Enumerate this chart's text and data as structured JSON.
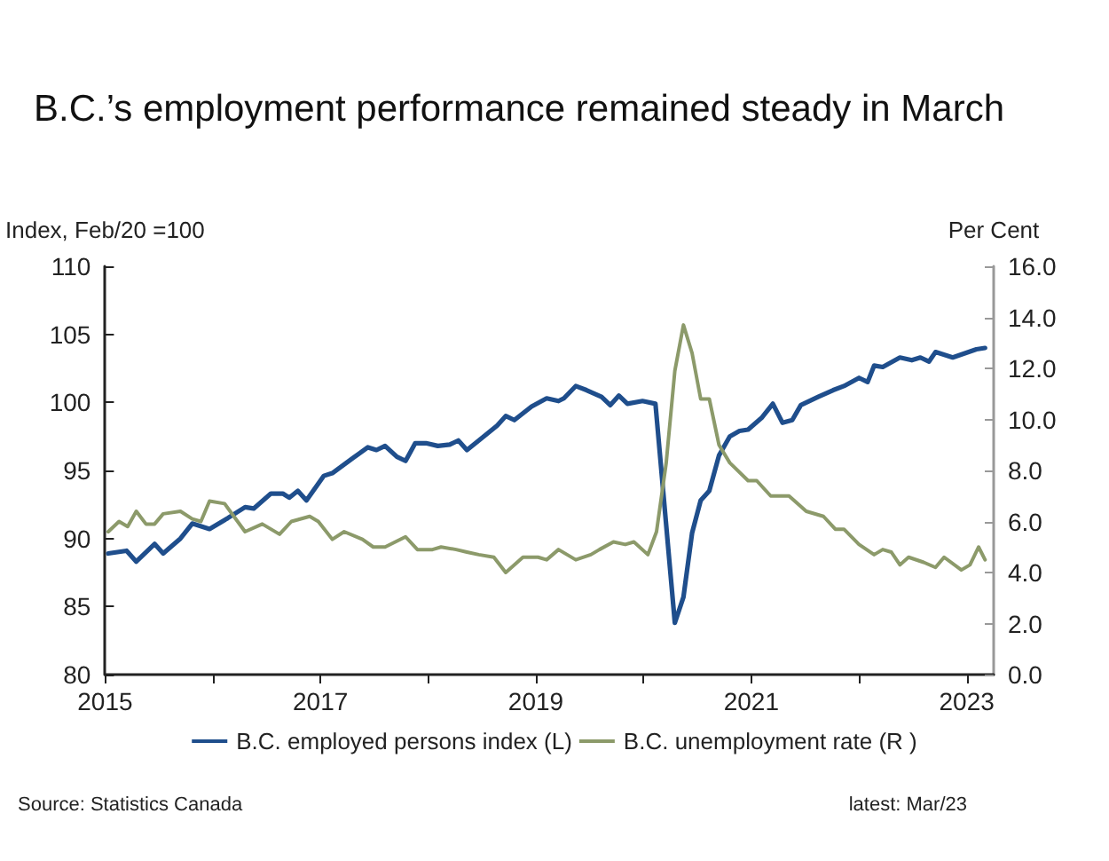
{
  "chart_data": {
    "type": "line",
    "title": "B.C.’s employment performance remained steady in March",
    "ylabel": "Index, Feb/20 =100",
    "y2label": "Per Cent",
    "xlim": [
      2015,
      2023.25
    ],
    "xticks": [
      2015,
      {
        "value": 2016,
        "label": null
      },
      2017,
      {
        "value": 2018,
        "label": null
      },
      2019,
      {
        "value": 2020,
        "label": null
      },
      2021,
      {
        "value": 2022,
        "label": null
      },
      2023
    ],
    "ylim": [
      80,
      110
    ],
    "yticks": [
      80,
      85,
      90,
      95,
      100,
      105,
      110
    ],
    "y2lim": [
      0,
      16
    ],
    "y2ticks": [
      {
        "value": 0,
        "label": "0.0"
      },
      {
        "value": 2,
        "label": "2.0"
      },
      {
        "value": 4,
        "label": "4.0"
      },
      {
        "value": 6,
        "label": "6.0"
      },
      {
        "value": 8,
        "label": "8.0"
      },
      {
        "value": 10,
        "label": "10.0"
      },
      {
        "value": 12,
        "label": "12.0"
      },
      {
        "value": 14,
        "label": "14.0"
      },
      {
        "value": 16,
        "label": "16.0"
      }
    ],
    "legend": "bottom",
    "grid": false,
    "marker": "none",
    "line_style": "solid",
    "annotations": [
      "Source: Statistics Canada",
      "latest: Mar/23"
    ],
    "series": [
      {
        "name": "B.C. employed persons index (L)",
        "color": "#1f4e8c",
        "x": [
          2015.03,
          2015.2,
          2015.29,
          2015.46,
          2015.54,
          2015.7,
          2015.81,
          2015.97,
          2016.14,
          2016.3,
          2016.38,
          2016.54,
          2016.65,
          2016.71,
          2016.79,
          2016.87,
          2017.03,
          2017.11,
          2017.3,
          2017.44,
          2017.52,
          2017.6,
          2017.71,
          2017.79,
          2017.88,
          2017.98,
          2018.09,
          2018.2,
          2018.28,
          2018.36,
          2018.47,
          2018.64,
          2018.72,
          2018.8,
          2018.96,
          2019.1,
          2019.21,
          2019.26,
          2019.37,
          2019.47,
          2019.61,
          2019.69,
          2019.77,
          2019.85,
          2019.99,
          2020.11,
          2020.29,
          2020.37,
          2020.45,
          2020.53,
          2020.61,
          2020.7,
          2020.8,
          2020.89,
          2020.97,
          2021.1,
          2021.2,
          2021.29,
          2021.38,
          2021.46,
          2021.62,
          2021.76,
          2021.86,
          2022,
          2022.08,
          2022.14,
          2022.22,
          2022.38,
          2022.49,
          2022.57,
          2022.65,
          2022.71,
          2022.87,
          2023.09,
          2023.17
        ],
        "values": [
          88.9,
          89.1,
          88.3,
          89.6,
          88.9,
          90.0,
          91.1,
          90.7,
          91.5,
          92.3,
          92.2,
          93.3,
          93.3,
          93.0,
          93.5,
          92.8,
          94.6,
          94.8,
          95.9,
          96.7,
          96.5,
          96.8,
          96.0,
          95.7,
          97.0,
          97.0,
          96.8,
          96.9,
          97.2,
          96.5,
          97.2,
          98.3,
          99.0,
          98.7,
          99.7,
          100.3,
          100.1,
          100.3,
          101.2,
          100.9,
          100.4,
          99.8,
          100.5,
          99.9,
          100.1,
          99.9,
          83.8,
          85.7,
          90.4,
          92.8,
          93.5,
          96.1,
          97.5,
          97.9,
          98.0,
          98.9,
          99.9,
          98.5,
          98.7,
          99.8,
          100.4,
          100.9,
          101.2,
          101.8,
          101.5,
          102.7,
          102.6,
          103.3,
          103.1,
          103.3,
          103.0,
          103.7,
          103.3,
          103.9,
          104.0
        ]
      },
      {
        "name": "B.C. unemployment rate (R )",
        "color": "#8c9a6a",
        "axis": "y2",
        "x": [
          2015.03,
          2015.13,
          2015.21,
          2015.29,
          2015.38,
          2015.46,
          2015.54,
          2015.7,
          2015.81,
          2015.89,
          2015.97,
          2016.11,
          2016.3,
          2016.46,
          2016.62,
          2016.73,
          2016.9,
          2016.98,
          2017.11,
          2017.22,
          2017.39,
          2017.49,
          2017.6,
          2017.79,
          2017.9,
          2018.04,
          2018.12,
          2018.26,
          2018.36,
          2018.47,
          2018.61,
          2018.72,
          2018.88,
          2019.02,
          2019.1,
          2019.21,
          2019.37,
          2019.51,
          2019.59,
          2019.72,
          2019.83,
          2019.91,
          2020.04,
          2020.12,
          2020.21,
          2020.29,
          2020.37,
          2020.45,
          2020.53,
          2020.61,
          2020.7,
          2020.8,
          2020.97,
          2021.05,
          2021.18,
          2021.35,
          2021.51,
          2021.67,
          2021.78,
          2021.86,
          2022,
          2022.14,
          2022.22,
          2022.3,
          2022.38,
          2022.46,
          2022.6,
          2022.71,
          2022.79,
          2022.95,
          2023.03,
          2023.11,
          2023.17
        ],
        "values": [
          5.6,
          6.0,
          5.8,
          6.4,
          5.9,
          5.9,
          6.3,
          6.4,
          6.1,
          6.0,
          6.8,
          6.7,
          5.6,
          5.9,
          5.5,
          6.0,
          6.2,
          6.0,
          5.3,
          5.6,
          5.3,
          5.0,
          5.0,
          5.4,
          4.9,
          4.9,
          5.0,
          4.9,
          4.8,
          4.7,
          4.6,
          4.0,
          4.6,
          4.6,
          4.5,
          4.9,
          4.5,
          4.7,
          4.9,
          5.2,
          5.1,
          5.2,
          4.7,
          5.6,
          8.3,
          11.9,
          13.7,
          12.6,
          10.8,
          10.8,
          9.0,
          8.3,
          7.6,
          7.6,
          7.0,
          7.0,
          6.4,
          6.2,
          5.7,
          5.7,
          5.1,
          4.7,
          4.9,
          4.8,
          4.3,
          4.6,
          4.4,
          4.2,
          4.6,
          4.1,
          4.3,
          5.0,
          4.5
        ]
      }
    ]
  }
}
